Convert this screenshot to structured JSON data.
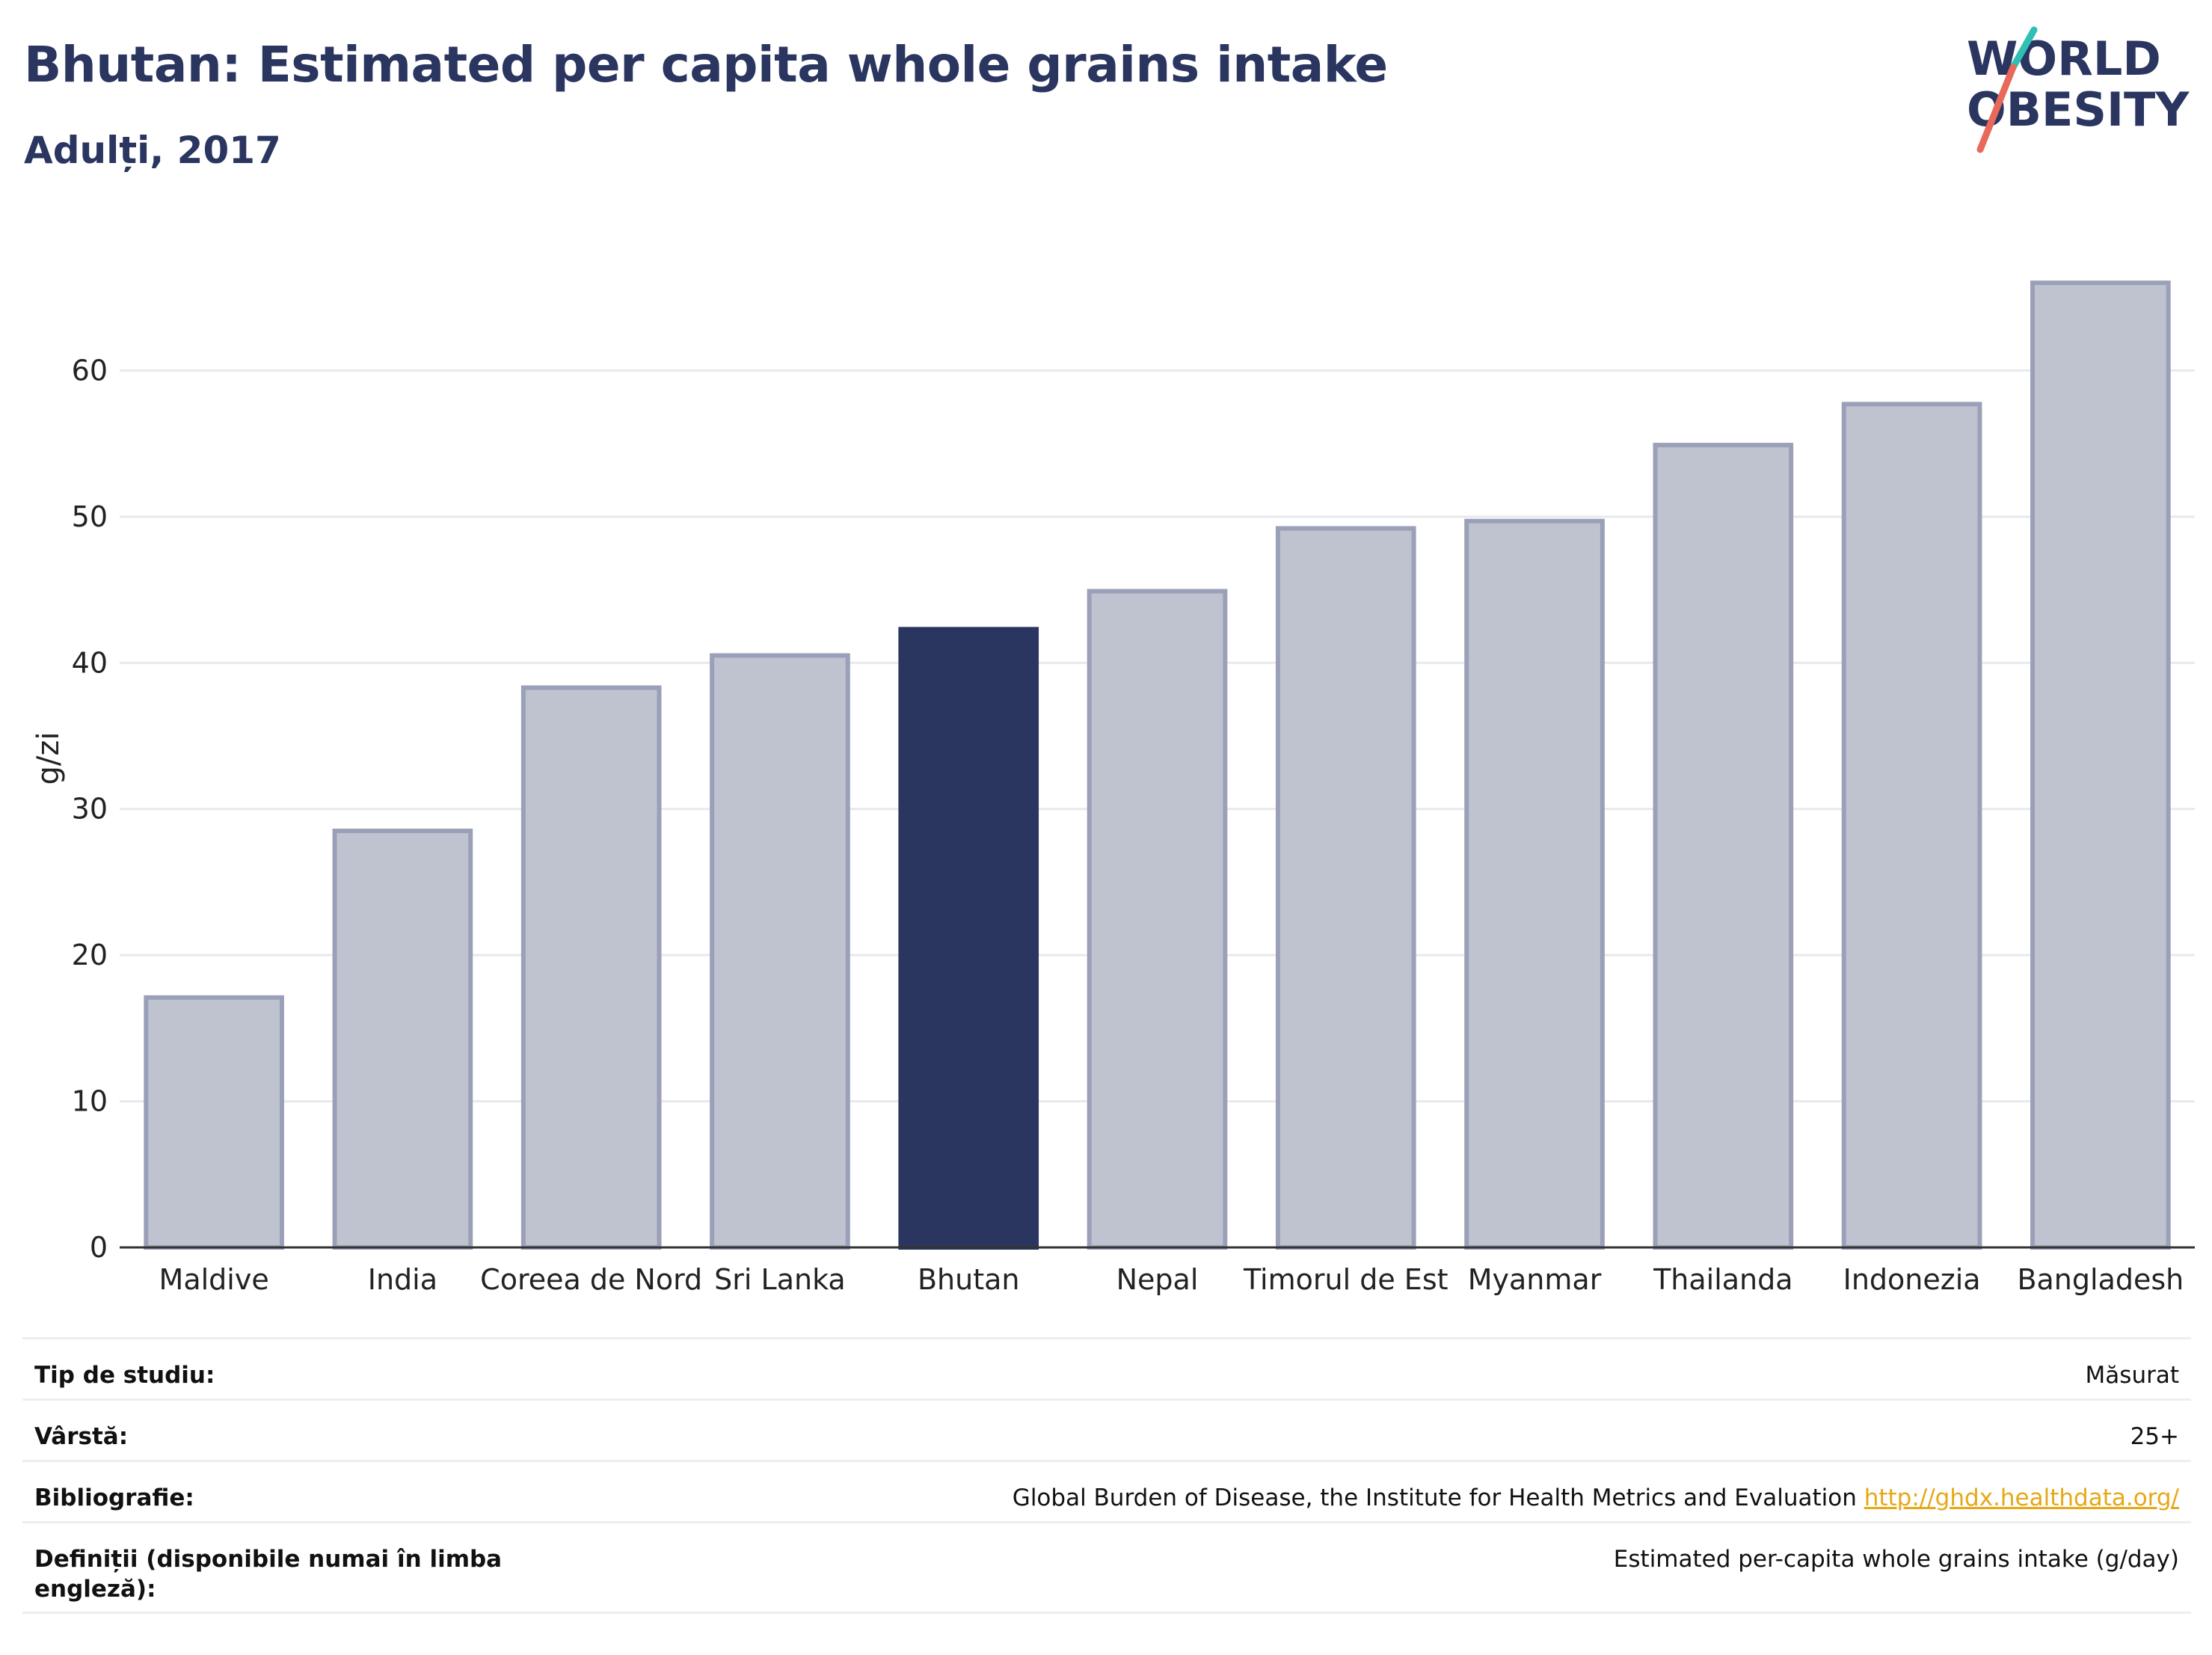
{
  "header": {
    "title": "Bhutan: Estimated per capita whole grains intake",
    "subtitle": "Adulți, 2017"
  },
  "logo": {
    "line1": "WORLD",
    "line2": "OBESITY"
  },
  "chart_data": {
    "type": "bar",
    "categories": [
      "Maldive",
      "India",
      "Coreea de Nord",
      "Sri Lanka",
      "Bhutan",
      "Nepal",
      "Timorul de Est",
      "Myanmar",
      "Thailanda",
      "Indonezia",
      "Bangladesh"
    ],
    "values": [
      17.1,
      28.5,
      38.3,
      40.5,
      42.3,
      44.9,
      49.2,
      49.7,
      54.9,
      57.7,
      66.0
    ],
    "highlight": "Bhutan",
    "ylabel": "g/zi",
    "ylim": [
      0,
      70
    ],
    "yticks": [
      0,
      10,
      20,
      30,
      40,
      50,
      60
    ],
    "grid": true,
    "colors": {
      "bar": "#bfc3d0",
      "bar_edge": "#9aa0b8",
      "highlight": "#2a3560",
      "grid": "#e8e9ee",
      "axis": "#333333"
    }
  },
  "info": [
    {
      "key": "Tip de studiu:",
      "value": "Măsurat"
    },
    {
      "key": "Vârstă:",
      "value": "25+"
    },
    {
      "key": "Bibliografie:",
      "value": "Global Burden of Disease, the Institute for Health Metrics and Evaluation",
      "link": "http://ghdx.healthdata.org/"
    },
    {
      "key": "Definiții (disponibile numai în limba engleză):",
      "value": "Estimated per-capita whole grains intake (g/day)"
    }
  ]
}
